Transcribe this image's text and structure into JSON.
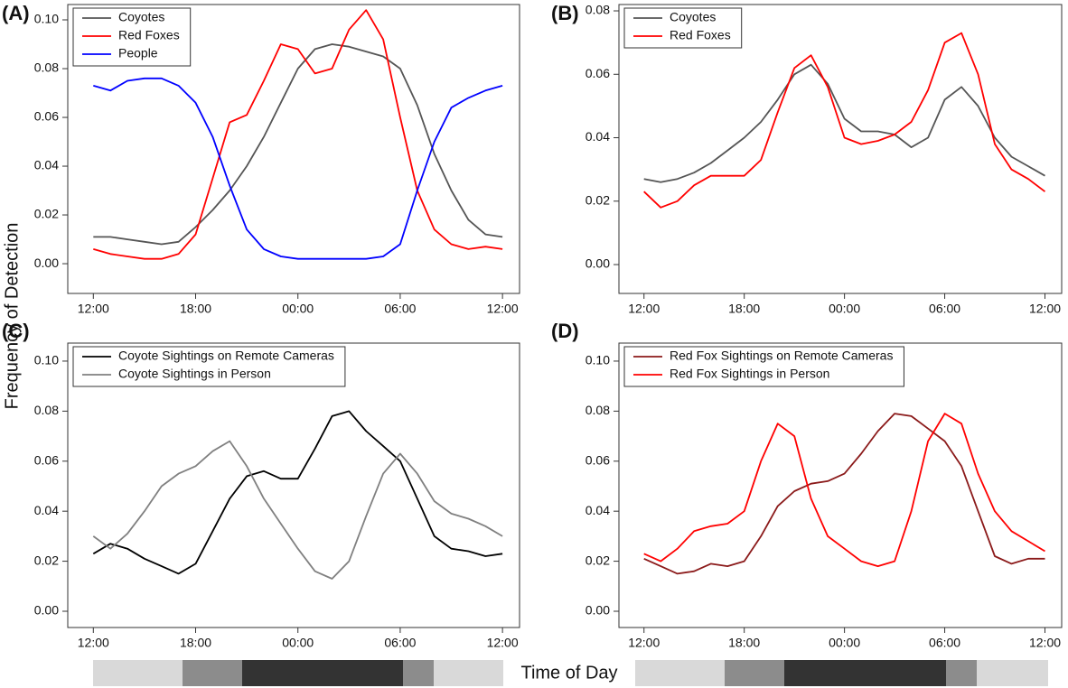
{
  "ylabel": "Frequency of Detection",
  "xlabel": "Time of Day",
  "chart_data": [
    {
      "type": "line",
      "label": "(A)",
      "x": [
        0,
        1,
        2,
        3,
        4,
        5,
        6,
        7,
        8,
        9,
        10,
        11,
        12,
        13,
        14,
        15,
        16,
        17,
        18,
        19,
        20,
        21,
        22,
        23,
        24
      ],
      "xlim": [
        -1.5,
        25
      ],
      "xticks": [
        {
          "value": 0,
          "label": "12:00"
        },
        {
          "value": 6,
          "label": "18:00"
        },
        {
          "value": 12,
          "label": "00:00"
        },
        {
          "value": 18,
          "label": "06:00"
        },
        {
          "value": 24,
          "label": "12:00"
        }
      ],
      "ylim": [
        -0.0122,
        0.1063
      ],
      "yticks": [
        {
          "value": 0,
          "label": "0.00"
        },
        {
          "value": 0.02,
          "label": "0.02"
        },
        {
          "value": 0.04,
          "label": "0.04"
        },
        {
          "value": 0.06,
          "label": "0.06"
        },
        {
          "value": 0.08,
          "label": "0.08"
        },
        {
          "value": 0.1,
          "label": "0.10"
        }
      ],
      "series": [
        {
          "name": "Coyotes",
          "color": "#555555",
          "values": [
            0.011,
            0.011,
            0.01,
            0.009,
            0.008,
            0.009,
            0.015,
            0.022,
            0.03,
            0.04,
            0.052,
            0.066,
            0.08,
            0.088,
            0.09,
            0.089,
            0.087,
            0.085,
            0.08,
            0.065,
            0.045,
            0.03,
            0.018,
            0.012,
            0.011
          ]
        },
        {
          "name": "Red Foxes",
          "color": "#ff0000",
          "values": [
            0.006,
            0.004,
            0.003,
            0.002,
            0.002,
            0.004,
            0.012,
            0.035,
            0.058,
            0.061,
            0.075,
            0.09,
            0.088,
            0.078,
            0.08,
            0.096,
            0.104,
            0.092,
            0.06,
            0.03,
            0.014,
            0.008,
            0.006,
            0.007,
            0.006
          ]
        },
        {
          "name": "People",
          "color": "#0000ff",
          "values": [
            0.073,
            0.071,
            0.075,
            0.076,
            0.076,
            0.073,
            0.066,
            0.052,
            0.032,
            0.014,
            0.006,
            0.003,
            0.002,
            0.002,
            0.002,
            0.002,
            0.002,
            0.003,
            0.008,
            0.03,
            0.05,
            0.064,
            0.068,
            0.071,
            0.073
          ]
        }
      ]
    },
    {
      "type": "line",
      "label": "(B)",
      "x": [
        0,
        1,
        2,
        3,
        4,
        5,
        6,
        7,
        8,
        9,
        10,
        11,
        12,
        13,
        14,
        15,
        16,
        17,
        18,
        19,
        20,
        21,
        22,
        23,
        24
      ],
      "xlim": [
        -1.5,
        25
      ],
      "xticks": [
        {
          "value": 0,
          "label": "12:00"
        },
        {
          "value": 6,
          "label": "18:00"
        },
        {
          "value": 12,
          "label": "00:00"
        },
        {
          "value": 18,
          "label": "06:00"
        },
        {
          "value": 24,
          "label": "12:00"
        }
      ],
      "ylim": [
        -0.0091,
        0.082
      ],
      "yticks": [
        {
          "value": 0,
          "label": "0.00"
        },
        {
          "value": 0.02,
          "label": "0.02"
        },
        {
          "value": 0.04,
          "label": "0.04"
        },
        {
          "value": 0.06,
          "label": "0.06"
        },
        {
          "value": 0.08,
          "label": "0.08"
        }
      ],
      "series": [
        {
          "name": "Coyotes",
          "color": "#555555",
          "values": [
            0.027,
            0.026,
            0.027,
            0.029,
            0.032,
            0.036,
            0.04,
            0.045,
            0.052,
            0.06,
            0.063,
            0.057,
            0.046,
            0.042,
            0.042,
            0.041,
            0.037,
            0.04,
            0.052,
            0.056,
            0.05,
            0.04,
            0.034,
            0.031,
            0.028
          ]
        },
        {
          "name": "Red Foxes",
          "color": "#ff0000",
          "values": [
            0.023,
            0.018,
            0.02,
            0.025,
            0.028,
            0.028,
            0.028,
            0.033,
            0.048,
            0.062,
            0.066,
            0.056,
            0.04,
            0.038,
            0.039,
            0.041,
            0.045,
            0.055,
            0.07,
            0.073,
            0.06,
            0.038,
            0.03,
            0.027,
            0.023
          ]
        }
      ]
    },
    {
      "type": "line",
      "label": "(C)",
      "x": [
        0,
        1,
        2,
        3,
        4,
        5,
        6,
        7,
        8,
        9,
        10,
        11,
        12,
        13,
        14,
        15,
        16,
        17,
        18,
        19,
        20,
        21,
        22,
        23,
        24
      ],
      "xlim": [
        -1.5,
        25
      ],
      "xticks": [
        {
          "value": 0,
          "label": "12:00"
        },
        {
          "value": 6,
          "label": "18:00"
        },
        {
          "value": 12,
          "label": "00:00"
        },
        {
          "value": 18,
          "label": "06:00"
        },
        {
          "value": 24,
          "label": "12:00"
        }
      ],
      "ylim": [
        -0.0065,
        0.1072
      ],
      "yticks": [
        {
          "value": 0,
          "label": "0.00"
        },
        {
          "value": 0.02,
          "label": "0.02"
        },
        {
          "value": 0.04,
          "label": "0.04"
        },
        {
          "value": 0.06,
          "label": "0.06"
        },
        {
          "value": 0.08,
          "label": "0.08"
        },
        {
          "value": 0.1,
          "label": "0.10"
        }
      ],
      "series": [
        {
          "name": "Coyote Sightings on Remote Cameras",
          "color": "#000000",
          "values": [
            0.023,
            0.027,
            0.025,
            0.021,
            0.018,
            0.015,
            0.019,
            0.032,
            0.045,
            0.054,
            0.056,
            0.053,
            0.053,
            0.065,
            0.078,
            0.08,
            0.072,
            0.066,
            0.06,
            0.045,
            0.03,
            0.025,
            0.024,
            0.022,
            0.023
          ]
        },
        {
          "name": "Coyote Sightings in Person",
          "color": "#808080",
          "values": [
            0.03,
            0.025,
            0.031,
            0.04,
            0.05,
            0.055,
            0.058,
            0.064,
            0.068,
            0.058,
            0.045,
            0.035,
            0.025,
            0.016,
            0.013,
            0.02,
            0.038,
            0.055,
            0.063,
            0.055,
            0.044,
            0.039,
            0.037,
            0.034,
            0.03
          ]
        }
      ]
    },
    {
      "type": "line",
      "label": "(D)",
      "x": [
        0,
        1,
        2,
        3,
        4,
        5,
        6,
        7,
        8,
        9,
        10,
        11,
        12,
        13,
        14,
        15,
        16,
        17,
        18,
        19,
        20,
        21,
        22,
        23,
        24
      ],
      "xlim": [
        -1.5,
        25
      ],
      "xticks": [
        {
          "value": 0,
          "label": "12:00"
        },
        {
          "value": 6,
          "label": "18:00"
        },
        {
          "value": 12,
          "label": "00:00"
        },
        {
          "value": 18,
          "label": "06:00"
        },
        {
          "value": 24,
          "label": "12:00"
        }
      ],
      "ylim": [
        -0.0065,
        0.1072
      ],
      "yticks": [
        {
          "value": 0,
          "label": "0.00"
        },
        {
          "value": 0.02,
          "label": "0.02"
        },
        {
          "value": 0.04,
          "label": "0.04"
        },
        {
          "value": 0.06,
          "label": "0.06"
        },
        {
          "value": 0.08,
          "label": "0.08"
        },
        {
          "value": 0.1,
          "label": "0.10"
        }
      ],
      "series": [
        {
          "name": "Red Fox Sightings on Remote Cameras",
          "color": "#8b1a1a",
          "values": [
            0.021,
            0.018,
            0.015,
            0.016,
            0.019,
            0.018,
            0.02,
            0.03,
            0.042,
            0.048,
            0.051,
            0.052,
            0.055,
            0.063,
            0.072,
            0.079,
            0.078,
            0.073,
            0.068,
            0.058,
            0.04,
            0.022,
            0.019,
            0.021,
            0.021
          ]
        },
        {
          "name": "Red Fox Sightings in Person",
          "color": "#ff0000",
          "values": [
            0.023,
            0.02,
            0.025,
            0.032,
            0.034,
            0.035,
            0.04,
            0.06,
            0.075,
            0.07,
            0.045,
            0.03,
            0.025,
            0.02,
            0.018,
            0.02,
            0.04,
            0.068,
            0.079,
            0.075,
            0.055,
            0.04,
            0.032,
            0.028,
            0.024
          ]
        }
      ]
    }
  ]
}
